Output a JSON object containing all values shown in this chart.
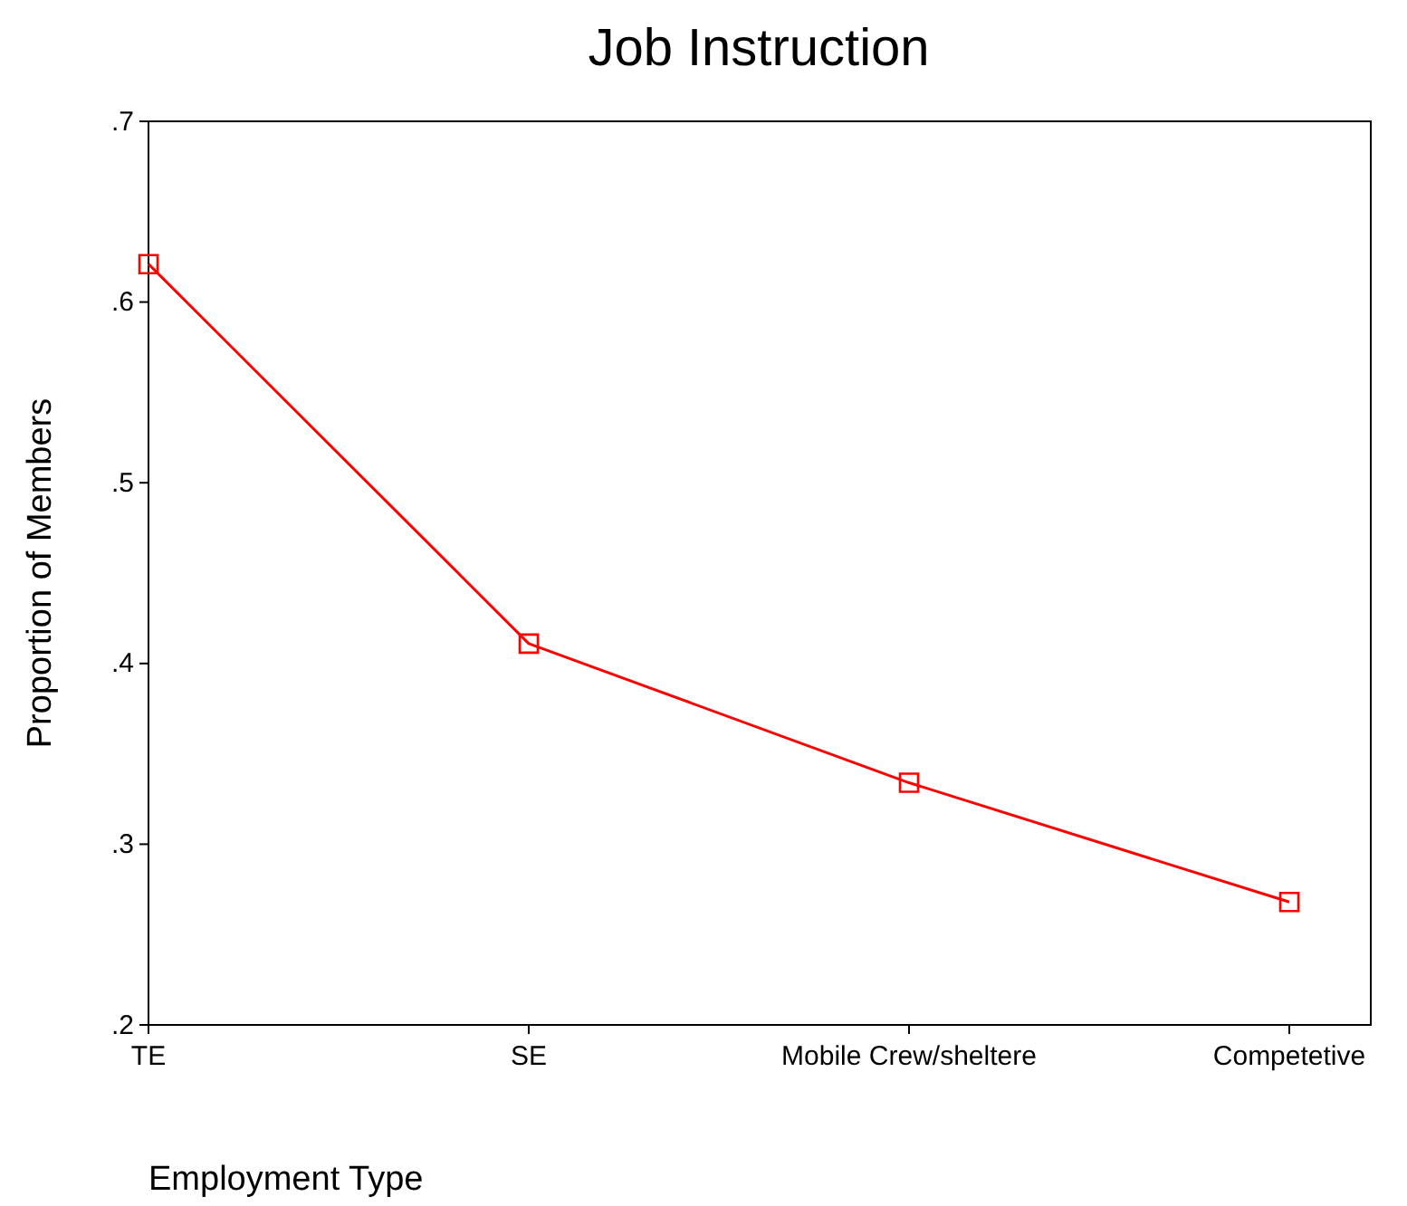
{
  "chart_data": {
    "type": "line",
    "title": "Job Instruction",
    "xlabel": "Employment Type",
    "ylabel": "Proportion of Members",
    "categories": [
      "TE",
      "SE",
      "Mobile Crew/sheltere",
      "Competetive"
    ],
    "series": [
      {
        "color": "#ff0000",
        "values": [
          0.621,
          0.411,
          0.334,
          0.268
        ]
      }
    ],
    "ylim": [
      0.2,
      0.7
    ],
    "yticks": [
      {
        "value": 0.2,
        "label": ".2"
      },
      {
        "value": 0.3,
        "label": ".3"
      },
      {
        "value": 0.4,
        "label": ".4"
      },
      {
        "value": 0.5,
        "label": ".5"
      },
      {
        "value": 0.6,
        "label": ".6"
      },
      {
        "value": 0.7,
        "label": ".7"
      }
    ],
    "grid": false,
    "marker": "square",
    "line_style": "solid"
  }
}
